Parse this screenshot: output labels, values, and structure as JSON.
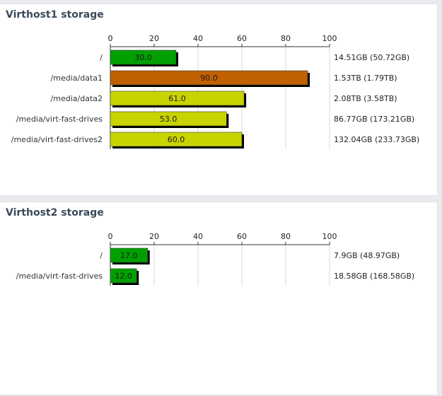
{
  "panels": [
    {
      "title": "Virthost1 storage"
    },
    {
      "title": "Virthost2 storage"
    }
  ],
  "colors": {
    "green": "#00a000",
    "orange": "#c06000",
    "yellow": "#c8d400",
    "shadow": "#000000",
    "grid": "#d8d8d8"
  },
  "chart_data": [
    {
      "type": "bar",
      "orientation": "horizontal",
      "title": "Virthost1 storage",
      "categories": [
        "/",
        "/media/data1",
        "/media/data2",
        "/media/virt-fast-drives",
        "/media/virt-fast-drives2"
      ],
      "values": [
        30.0,
        90.0,
        61.0,
        53.0,
        60.0
      ],
      "value_labels": [
        "30.0",
        "90.0",
        "61.0",
        "53.0",
        "60.0"
      ],
      "size_labels": [
        "14.51GB (50.72GB)",
        "1.53TB (1.79TB)",
        "2.08TB (3.58TB)",
        "86.77GB (173.21GB)",
        "132.04GB (233.73GB)"
      ],
      "bar_colors": [
        "green",
        "orange",
        "yellow",
        "yellow",
        "yellow"
      ],
      "xlim": [
        0,
        100
      ],
      "xticks": [
        "0",
        "20",
        "40",
        "60",
        "80",
        "100"
      ],
      "axis_position": "top",
      "grid": true
    },
    {
      "type": "bar",
      "orientation": "horizontal",
      "title": "Virthost2 storage",
      "categories": [
        "/",
        "/media/virt-fast-drives"
      ],
      "values": [
        17.0,
        12.0
      ],
      "value_labels": [
        "17.0",
        "12.0"
      ],
      "size_labels": [
        "7.9GB (48.97GB)",
        "18.58GB (168.58GB)"
      ],
      "bar_colors": [
        "green",
        "green"
      ],
      "xlim": [
        0,
        100
      ],
      "xticks": [
        "0",
        "20",
        "40",
        "60",
        "80",
        "100"
      ],
      "axis_position": "top",
      "grid": true
    }
  ]
}
